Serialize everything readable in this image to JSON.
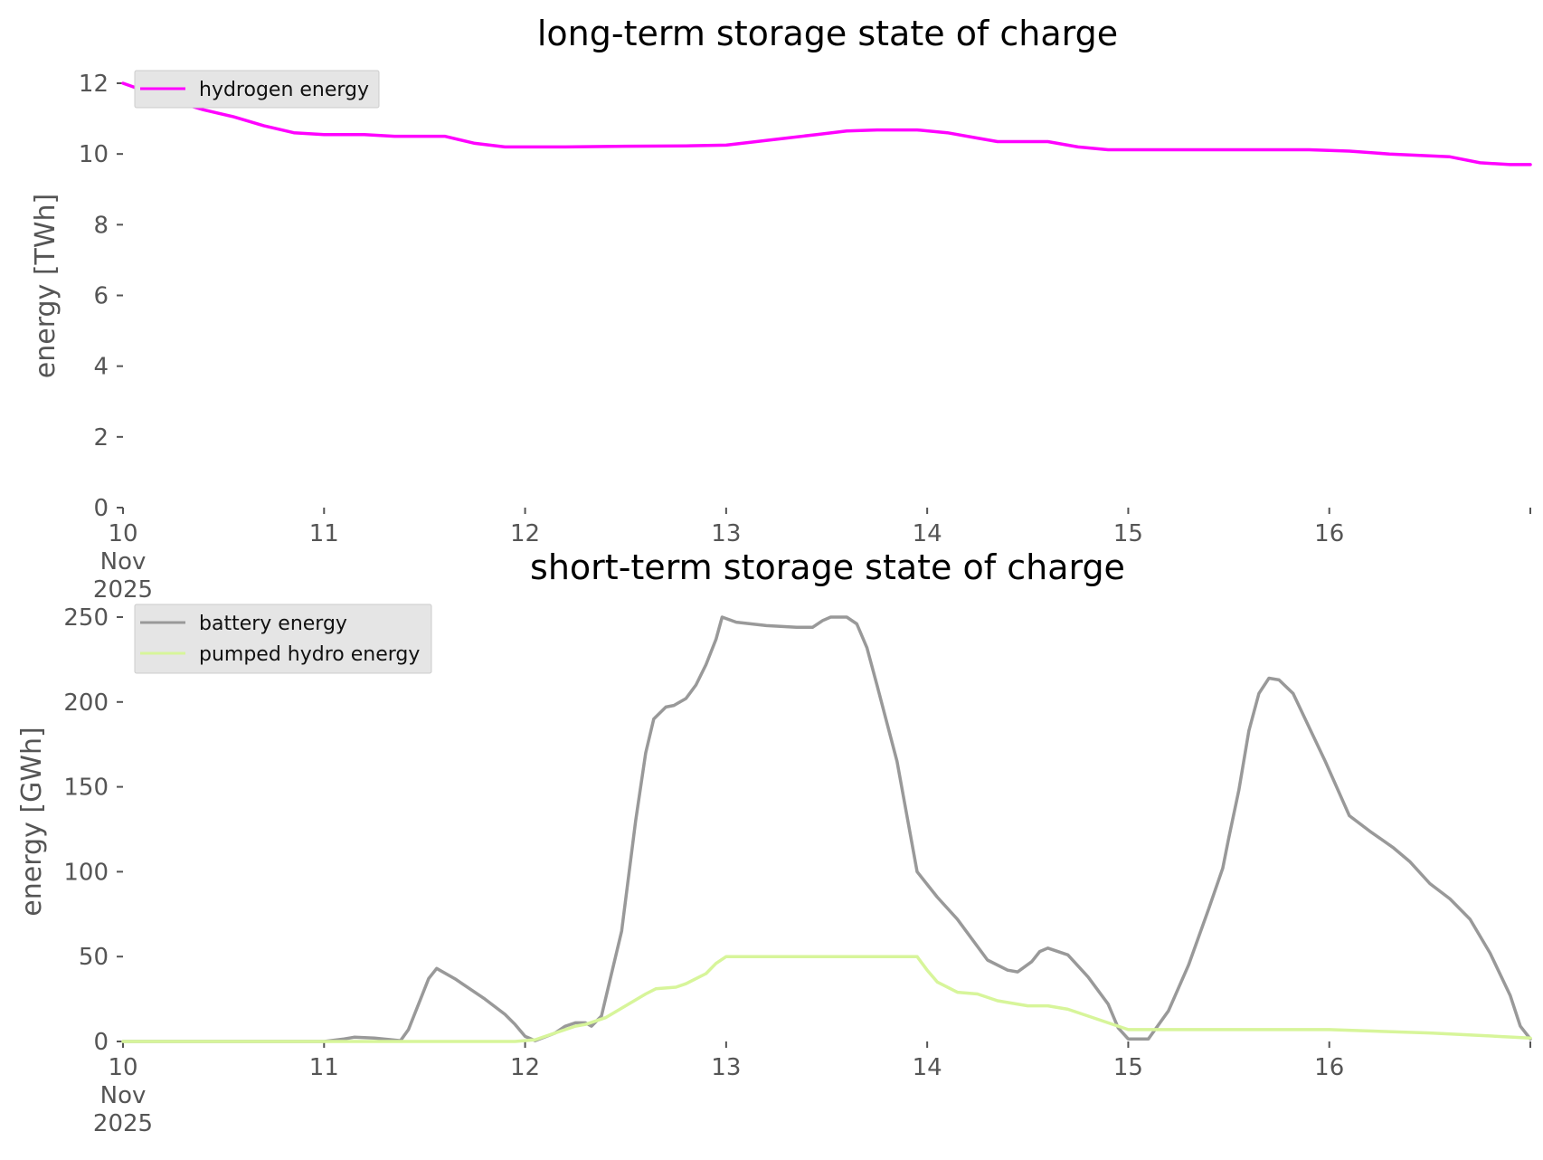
{
  "chart_data": [
    {
      "type": "line",
      "title": "long-term storage state of charge",
      "xlabel": "",
      "ylabel": "energy [TWh]",
      "ylim": [
        0,
        12
      ],
      "xlim": [
        10,
        17
      ],
      "yticks": [
        "0",
        "2",
        "4",
        "6",
        "8",
        "10",
        "12"
      ],
      "xtick_labels": [
        {
          "x": 10,
          "lines": [
            "10",
            "Nov",
            "2025"
          ]
        },
        {
          "x": 11,
          "lines": [
            "11"
          ]
        },
        {
          "x": 12,
          "lines": [
            "12"
          ]
        },
        {
          "x": 13,
          "lines": [
            "13"
          ]
        },
        {
          "x": 14,
          "lines": [
            "14"
          ]
        },
        {
          "x": 15,
          "lines": [
            "15"
          ]
        },
        {
          "x": 16,
          "lines": [
            "16"
          ]
        },
        {
          "x": 17,
          "lines": [
            ""
          ]
        }
      ],
      "legend_position": "top-left",
      "grid": false,
      "series": [
        {
          "name": "hydrogen energy",
          "color": "#ff00ff",
          "x": [
            10.0,
            10.1,
            10.25,
            10.4,
            10.55,
            10.7,
            10.85,
            11.0,
            11.2,
            11.35,
            11.6,
            11.75,
            11.9,
            12.2,
            12.5,
            12.8,
            13.0,
            13.15,
            13.3,
            13.45,
            13.6,
            13.75,
            13.95,
            14.1,
            14.25,
            14.35,
            14.6,
            14.75,
            14.9,
            15.2,
            15.6,
            15.9,
            16.1,
            16.3,
            16.6,
            16.75,
            16.9,
            17.0
          ],
          "y": [
            12.0,
            11.8,
            11.5,
            11.25,
            11.05,
            10.8,
            10.6,
            10.55,
            10.55,
            10.5,
            10.5,
            10.3,
            10.2,
            10.2,
            10.22,
            10.23,
            10.25,
            10.35,
            10.45,
            10.55,
            10.65,
            10.68,
            10.68,
            10.6,
            10.45,
            10.35,
            10.35,
            10.2,
            10.12,
            10.12,
            10.12,
            10.12,
            10.08,
            10.0,
            9.92,
            9.75,
            9.7,
            9.7
          ]
        }
      ]
    },
    {
      "type": "line",
      "title": "short-term storage state of charge",
      "xlabel": "",
      "ylabel": "energy [GWh]",
      "ylim": [
        0,
        250
      ],
      "xlim": [
        10,
        17
      ],
      "yticks": [
        "0",
        "50",
        "100",
        "150",
        "200",
        "250"
      ],
      "xtick_labels": [
        {
          "x": 10,
          "lines": [
            "10",
            "Nov",
            "2025"
          ]
        },
        {
          "x": 11,
          "lines": [
            "11"
          ]
        },
        {
          "x": 12,
          "lines": [
            "12"
          ]
        },
        {
          "x": 13,
          "lines": [
            "13"
          ]
        },
        {
          "x": 14,
          "lines": [
            "14"
          ]
        },
        {
          "x": 15,
          "lines": [
            "15"
          ]
        },
        {
          "x": 16,
          "lines": [
            "16"
          ]
        },
        {
          "x": 17,
          "lines": [
            ""
          ]
        }
      ],
      "legend_position": "top-left",
      "grid": false,
      "series": [
        {
          "name": "battery energy",
          "color": "#999999",
          "x": [
            10.0,
            11.0,
            11.1,
            11.15,
            11.25,
            11.38,
            11.42,
            11.48,
            11.52,
            11.56,
            11.65,
            11.8,
            11.9,
            11.95,
            12.0,
            12.05,
            12.15,
            12.2,
            12.25,
            12.3,
            12.33,
            12.38,
            12.42,
            12.48,
            12.55,
            12.6,
            12.64,
            12.7,
            12.74,
            12.8,
            12.85,
            12.9,
            12.95,
            12.98,
            13.05,
            13.2,
            13.35,
            13.43,
            13.48,
            13.52,
            13.6,
            13.65,
            13.7,
            13.75,
            13.85,
            13.95,
            14.05,
            14.15,
            14.3,
            14.4,
            14.45,
            14.52,
            14.56,
            14.6,
            14.7,
            14.8,
            14.9,
            14.95,
            15.0,
            15.1,
            15.2,
            15.3,
            15.4,
            15.47,
            15.5,
            15.55,
            15.6,
            15.65,
            15.7,
            15.75,
            15.82,
            15.92,
            15.98,
            16.1,
            16.2,
            16.32,
            16.4,
            16.5,
            16.6,
            16.7,
            16.8,
            16.9,
            16.95,
            17.0
          ],
          "y": [
            0,
            0,
            1.5,
            2.5,
            2,
            0.5,
            7,
            25,
            37,
            43,
            37,
            25,
            16,
            10,
            3,
            0.5,
            5,
            9,
            11,
            11,
            9,
            15,
            35,
            65,
            130,
            170,
            190,
            197,
            198,
            202,
            210,
            222,
            237,
            250,
            247,
            245,
            244,
            244,
            248,
            250,
            250,
            246,
            232,
            210,
            165,
            100,
            85,
            72,
            48,
            42,
            41,
            47,
            53,
            55,
            51,
            38,
            22,
            8,
            1.5,
            1.5,
            18,
            45,
            78,
            102,
            120,
            148,
            183,
            205,
            214,
            213,
            205,
            180,
            165,
            133,
            124,
            114,
            106,
            93,
            84,
            72,
            52,
            27,
            9,
            1.5
          ]
        },
        {
          "name": "pumped hydro energy",
          "color": "#d7f59a",
          "x": [
            10.0,
            11.95,
            12.05,
            12.15,
            12.25,
            12.3,
            12.4,
            12.5,
            12.6,
            12.65,
            12.75,
            12.8,
            12.9,
            12.95,
            13.0,
            13.95,
            14.0,
            14.05,
            14.15,
            14.25,
            14.35,
            14.5,
            14.6,
            14.7,
            14.8,
            14.95,
            15.0,
            16.0,
            16.5,
            17.0
          ],
          "y": [
            0,
            0,
            1,
            5,
            9,
            10,
            14,
            21,
            28,
            31,
            32,
            34,
            40,
            46,
            50,
            50,
            42,
            35,
            29,
            28,
            24,
            21,
            21,
            19,
            15,
            9,
            7,
            7,
            5,
            2
          ]
        }
      ]
    }
  ]
}
